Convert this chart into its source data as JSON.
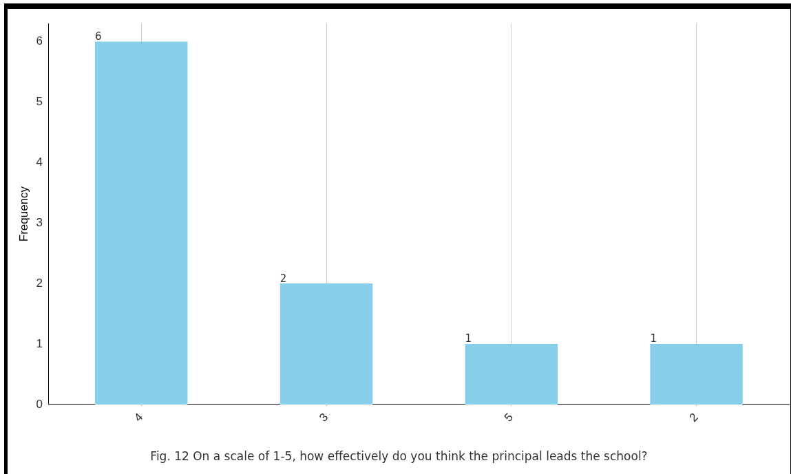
{
  "chart_data": {
    "type": "bar",
    "ylabel": "Frequency",
    "categories": [
      "4",
      "3",
      "5",
      "2"
    ],
    "values": [
      6,
      2,
      1,
      1
    ],
    "color": "#87ceeb",
    "ylim": [
      0,
      6.3
    ],
    "yticks": [
      0,
      1,
      2,
      3,
      4,
      5,
      6
    ],
    "grid": "x",
    "data_labels": true,
    "legend": false,
    "annotations": [
      "Fig. 12 On a scale of 1-5, how effectively do you think the principal leads the school?"
    ]
  }
}
